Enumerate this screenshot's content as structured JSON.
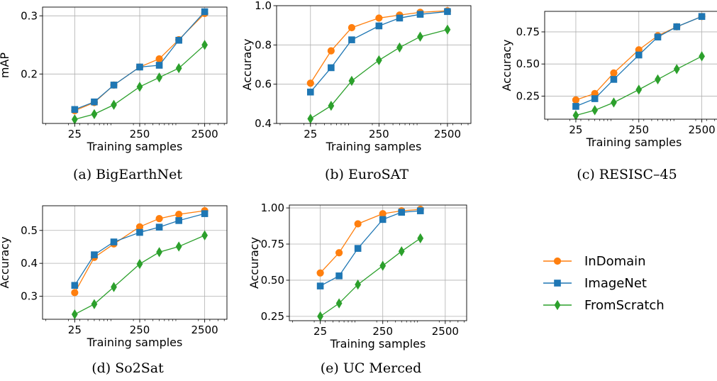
{
  "colors": {
    "InDomain": "#ff7f0e",
    "ImageNet": "#1f77b4",
    "FromScratch": "#2ca02c"
  },
  "legend": {
    "placement": "bottom-right",
    "entries": [
      "InDomain",
      "ImageNet",
      "FromScratch"
    ]
  },
  "chart_data": [
    {
      "type": "line",
      "caption": "(a) BigEarthNet",
      "xscale": "log",
      "xlabel": "Training samples",
      "ylabel": "mAP",
      "xticks": [
        25,
        250,
        2500
      ],
      "xtick_labels": [
        "25",
        "250",
        "2500"
      ],
      "yticks": [
        0.2,
        0.3
      ],
      "ytick_labels": [
        "0.2",
        "0.3"
      ],
      "xlim": [
        8,
        5500
      ],
      "ylim": [
        0.115,
        0.315
      ],
      "grid": true,
      "x": [
        25,
        50,
        100,
        250,
        500,
        1000,
        2500
      ],
      "series": [
        {
          "name": "InDomain",
          "marker": "circle",
          "values": [
            0.137,
            0.151,
            0.181,
            0.212,
            0.226,
            0.259,
            0.304
          ]
        },
        {
          "name": "ImageNet",
          "marker": "square",
          "values": [
            0.139,
            0.152,
            0.181,
            0.212,
            0.215,
            0.258,
            0.307
          ]
        },
        {
          "name": "FromScratch",
          "marker": "diamond",
          "values": [
            0.122,
            0.131,
            0.147,
            0.178,
            0.194,
            0.21,
            0.25
          ]
        }
      ]
    },
    {
      "type": "line",
      "caption": "(b) EuroSAT",
      "xscale": "log",
      "xlabel": "Training samples",
      "ylabel": "Accuracy",
      "xticks": [
        25,
        250,
        2500
      ],
      "xtick_labels": [
        "25",
        "250",
        "2500"
      ],
      "yticks": [
        0.4,
        0.6,
        0.8,
        1.0
      ],
      "ytick_labels": [
        "0.4",
        "0.6",
        "0.8",
        "1.0"
      ],
      "xlim": [
        8,
        5500
      ],
      "ylim": [
        0.4,
        1.0
      ],
      "grid": true,
      "x": [
        25,
        50,
        100,
        250,
        500,
        1000,
        2500
      ],
      "series": [
        {
          "name": "InDomain",
          "marker": "circle",
          "values": [
            0.605,
            0.77,
            0.888,
            0.937,
            0.952,
            0.966,
            0.974
          ]
        },
        {
          "name": "ImageNet",
          "marker": "square",
          "values": [
            0.56,
            0.684,
            0.826,
            0.897,
            0.937,
            0.956,
            0.97
          ]
        },
        {
          "name": "FromScratch",
          "marker": "diamond",
          "values": [
            0.424,
            0.49,
            0.617,
            0.722,
            0.787,
            0.842,
            0.878
          ]
        }
      ]
    },
    {
      "type": "line",
      "caption": "(c) RESISC–45",
      "xscale": "log",
      "xlabel": "Training samples",
      "ylabel": "Accuracy",
      "xticks": [
        25,
        250,
        2500
      ],
      "xtick_labels": [
        "25",
        "250",
        "2500"
      ],
      "yticks": [
        0.25,
        0.5,
        0.75
      ],
      "ytick_labels": [
        "0.25",
        "0.50",
        "0.75"
      ],
      "xlim": [
        8,
        5500
      ],
      "ylim": [
        0.07,
        0.91
      ],
      "grid": true,
      "x": [
        25,
        50,
        100,
        250,
        500,
        1000,
        2500
      ],
      "series": [
        {
          "name": "InDomain",
          "marker": "circle",
          "values": [
            0.22,
            0.27,
            0.43,
            0.61,
            0.72,
            0.79,
            0.87
          ]
        },
        {
          "name": "ImageNet",
          "marker": "square",
          "values": [
            0.17,
            0.23,
            0.38,
            0.57,
            0.71,
            0.79,
            0.87
          ]
        },
        {
          "name": "FromScratch",
          "marker": "diamond",
          "values": [
            0.1,
            0.14,
            0.2,
            0.3,
            0.38,
            0.46,
            0.56
          ]
        }
      ]
    },
    {
      "type": "line",
      "caption": "(d) So2Sat",
      "xscale": "log",
      "xlabel": "Training samples",
      "ylabel": "Accuracy",
      "xticks": [
        25,
        250,
        2500
      ],
      "xtick_labels": [
        "25",
        "250",
        "2500"
      ],
      "yticks": [
        0.3,
        0.4,
        0.5
      ],
      "ytick_labels": [
        "0.3",
        "0.4",
        "0.5"
      ],
      "xlim": [
        8,
        5500
      ],
      "ylim": [
        0.23,
        0.575
      ],
      "grid": true,
      "x": [
        25,
        50,
        100,
        250,
        500,
        1000,
        2500
      ],
      "series": [
        {
          "name": "InDomain",
          "marker": "circle",
          "values": [
            0.311,
            0.418,
            0.459,
            0.511,
            0.536,
            0.549,
            0.56
          ]
        },
        {
          "name": "ImageNet",
          "marker": "square",
          "values": [
            0.333,
            0.426,
            0.465,
            0.494,
            0.51,
            0.53,
            0.551
          ]
        },
        {
          "name": "FromScratch",
          "marker": "diamond",
          "values": [
            0.245,
            0.276,
            0.328,
            0.398,
            0.434,
            0.451,
            0.485
          ]
        }
      ]
    },
    {
      "type": "line",
      "caption": "(e) UC Merced",
      "xscale": "log",
      "xlabel": "Training samples",
      "ylabel": "Accuracy",
      "xticks": [
        25,
        250,
        2500
      ],
      "xtick_labels": [
        "25",
        "250",
        "2500"
      ],
      "yticks": [
        0.25,
        0.5,
        0.75,
        1.0
      ],
      "ytick_labels": [
        "0.25",
        "0.50",
        "0.75",
        "1.00"
      ],
      "xlim": [
        8,
        5500
      ],
      "ylim": [
        0.22,
        1.02
      ],
      "grid": true,
      "x": [
        25,
        50,
        100,
        250,
        500,
        1000
      ],
      "series": [
        {
          "name": "InDomain",
          "marker": "circle",
          "values": [
            0.55,
            0.69,
            0.89,
            0.96,
            0.98,
            0.99
          ]
        },
        {
          "name": "ImageNet",
          "marker": "square",
          "values": [
            0.46,
            0.53,
            0.72,
            0.92,
            0.97,
            0.98
          ]
        },
        {
          "name": "FromScratch",
          "marker": "diamond",
          "values": [
            0.25,
            0.34,
            0.47,
            0.6,
            0.7,
            0.79
          ]
        }
      ]
    }
  ]
}
